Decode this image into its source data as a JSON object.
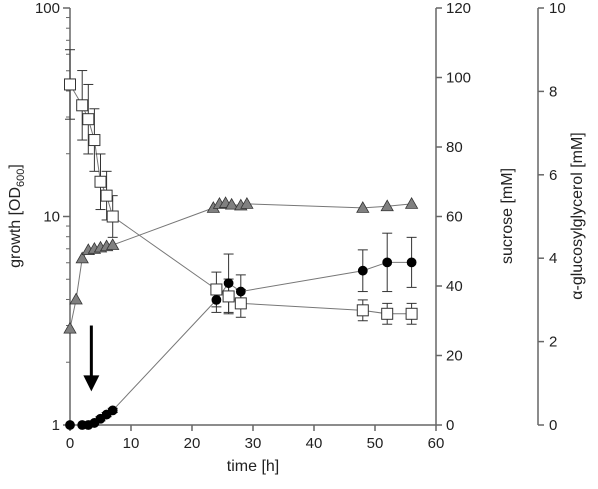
{
  "chart_data": {
    "type": "scatter",
    "xlabel": "time [h]",
    "x_ticks": [
      0,
      10,
      20,
      30,
      40,
      50,
      60
    ],
    "xlim": [
      0,
      60
    ],
    "left_axis": {
      "label_main": "growth [OD",
      "label_sub": "600",
      "label_end": "]",
      "scale": "log",
      "ylim": [
        1,
        100
      ],
      "ticks": [
        1,
        10,
        100
      ]
    },
    "right_axis_1": {
      "label": "sucrose [mM]",
      "ylim": [
        0,
        120
      ],
      "ticks": [
        0,
        20,
        40,
        60,
        80,
        100,
        120
      ]
    },
    "right_axis_2": {
      "label": "α-glucosylglycerol [mM]",
      "ylim": [
        0,
        10
      ],
      "ticks": [
        0,
        2,
        4,
        6,
        8,
        10
      ]
    },
    "arrow": {
      "x": 3.5,
      "y_from": 3.0,
      "y_to": 1.45
    },
    "series": [
      {
        "marker": "triangle",
        "axis": "left",
        "color": "#808080",
        "x": [
          0,
          1,
          2,
          3,
          4,
          5,
          6,
          7,
          23.5,
          24.5,
          25.5,
          26.5,
          28,
          29,
          48,
          52,
          56
        ],
        "y": [
          2.9,
          4.0,
          6.3,
          6.9,
          7.0,
          7.1,
          7.2,
          7.3,
          11.0,
          11.5,
          11.6,
          11.4,
          11.3,
          11.5,
          11.0,
          11.2,
          11.5
        ]
      },
      {
        "marker": "square",
        "axis": "sucrose",
        "color": "#ffffff",
        "x": [
          0,
          2,
          3,
          4,
          5,
          6,
          7,
          24,
          26,
          28,
          48,
          52,
          56
        ],
        "y": [
          98,
          92,
          88,
          82,
          70,
          66,
          60,
          39,
          37,
          35,
          33,
          32,
          32
        ],
        "err": [
          10,
          10,
          10,
          9,
          8,
          7,
          6,
          5,
          5,
          4,
          3,
          3,
          3
        ]
      },
      {
        "marker": "circle",
        "axis": "glucosylglycerol",
        "color": "#000000",
        "x": [
          0,
          2,
          3,
          4,
          5,
          6,
          7,
          24,
          26,
          28,
          48,
          52,
          56
        ],
        "y": [
          0,
          0,
          0,
          0.05,
          0.15,
          0.25,
          0.35,
          3.0,
          3.4,
          3.2,
          3.7,
          3.9,
          3.9
        ],
        "err": [
          0,
          0,
          0,
          0.05,
          0.05,
          0.05,
          0.05,
          0.3,
          0.7,
          0.4,
          0.5,
          0.7,
          0.6
        ]
      }
    ]
  }
}
